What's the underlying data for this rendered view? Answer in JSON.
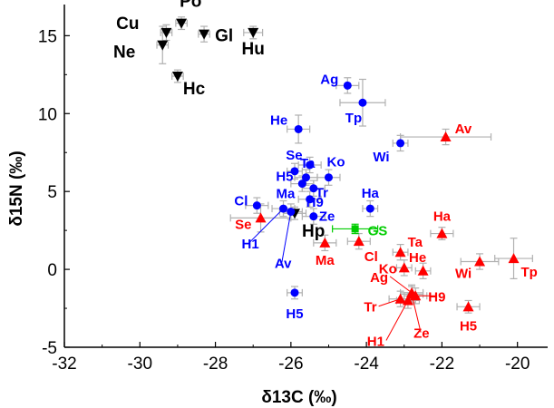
{
  "chart_data": {
    "type": "scatter",
    "xlabel": "δ13C (‰)",
    "ylabel": "δ15N (‰)",
    "xlim": [
      -32,
      -19.2
    ],
    "ylim": [
      -5,
      17
    ],
    "x_ticks": [
      "-32",
      "-30",
      "-28",
      "-26",
      "-24",
      "-22",
      "-20"
    ],
    "y_ticks": [
      "-5",
      "0",
      "5",
      "10",
      "15"
    ],
    "grid": false,
    "legend": "none",
    "colors": {
      "black": "#000000",
      "blue": "#0000ff",
      "red": "#ff0000",
      "green": "#00cc00",
      "error": "#b0b0b0"
    },
    "series": [
      {
        "marker": "triangle-down",
        "color": "#000000",
        "points": [
          {
            "label": "Cu",
            "x": -29.3,
            "y": 15.2,
            "xerr": 0.15,
            "yerr": 0.5
          },
          {
            "label": "Ne",
            "x": -29.4,
            "y": 14.4,
            "xerr": 0.15,
            "yerr": 1.2
          },
          {
            "label": "Po",
            "x": -28.9,
            "y": 15.8,
            "xerr": 0.15,
            "yerr": 0.4
          },
          {
            "label": "Gl",
            "x": -28.3,
            "y": 15.1,
            "xerr": 0.15,
            "yerr": 0.5
          },
          {
            "label": "Hu",
            "x": -27.0,
            "y": 15.2,
            "xerr": 0.25,
            "yerr": 0.4
          },
          {
            "label": "Hc",
            "x": -29.0,
            "y": 12.4,
            "xerr": 0.15,
            "yerr": 0.4
          },
          {
            "label": "Hp",
            "x": -25.9,
            "y": 3.6,
            "xerr": 0.3,
            "yerr": 0.4
          }
        ]
      },
      {
        "marker": "circle",
        "color": "#0000ff",
        "points": [
          {
            "label": "Ag",
            "x": -24.5,
            "y": 11.8,
            "xerr": 0.3,
            "yerr": 0.5
          },
          {
            "label": "Tp",
            "x": -24.1,
            "y": 10.7,
            "xerr": 0.6,
            "yerr": 1.5
          },
          {
            "label": "He",
            "x": -25.8,
            "y": 9.0,
            "xerr": 0.3,
            "yerr": 0.9
          },
          {
            "label": "Wi",
            "x": -23.1,
            "y": 8.1,
            "xerr": 0.2,
            "yerr": 0.5
          },
          {
            "label": "Se",
            "x": -25.5,
            "y": 6.7,
            "xerr": 0.3,
            "yerr": 0.5
          },
          {
            "label": "Ta",
            "x": -25.9,
            "y": 6.3,
            "xerr": 0.2,
            "yerr": 0.5
          },
          {
            "label": "H5",
            "x": -25.6,
            "y": 5.9,
            "xerr": 0.3,
            "yerr": 0.5
          },
          {
            "label": "Ko",
            "x": -25.0,
            "y": 5.9,
            "xerr": 0.3,
            "yerr": 0.5
          },
          {
            "label": "Ma",
            "x": -25.7,
            "y": 5.5,
            "xerr": 0.3,
            "yerr": 0.5
          },
          {
            "label": "Tr",
            "x": -25.4,
            "y": 5.2,
            "xerr": 0.3,
            "yerr": 0.5
          },
          {
            "label": "H9",
            "x": -25.5,
            "y": 4.5,
            "xerr": 0.3,
            "yerr": 0.5
          },
          {
            "label": "Cl",
            "x": -26.9,
            "y": 4.1,
            "xerr": 0.3,
            "yerr": 0.5
          },
          {
            "label": "H1",
            "x": -26.2,
            "y": 3.9,
            "xerr": 0.3,
            "yerr": 0.5
          },
          {
            "label": "Ha",
            "x": -23.9,
            "y": 3.9,
            "xerr": 0.2,
            "yerr": 0.5
          },
          {
            "label": "Ze",
            "x": -25.4,
            "y": 3.4,
            "xerr": 0.3,
            "yerr": 0.5
          },
          {
            "label": "Av",
            "x": -26.0,
            "y": 3.7,
            "xerr": 0.3,
            "yerr": 0.5
          },
          {
            "label": "H5",
            "x": -25.9,
            "y": -1.5,
            "xerr": 0.2,
            "yerr": 0.4
          }
        ]
      },
      {
        "marker": "triangle-up",
        "color": "#ff0000",
        "points": [
          {
            "label": "Av",
            "x": -21.9,
            "y": 8.5,
            "xerr": 1.2,
            "yerr": 0.5
          },
          {
            "label": "Se",
            "x": -26.8,
            "y": 3.3,
            "xerr": 0.8,
            "yerr": 0.9
          },
          {
            "label": "Ha",
            "x": -22.0,
            "y": 2.3,
            "xerr": 0.3,
            "yerr": 0.4
          },
          {
            "label": "Ma",
            "x": -25.1,
            "y": 1.7,
            "xerr": 0.3,
            "yerr": 0.5
          },
          {
            "label": "Cl",
            "x": -24.2,
            "y": 1.8,
            "xerr": 0.3,
            "yerr": 0.5
          },
          {
            "label": "Ta",
            "x": -23.1,
            "y": 1.1,
            "xerr": 0.2,
            "yerr": 0.5
          },
          {
            "label": "Ko",
            "x": -23.0,
            "y": 0.1,
            "xerr": 0.2,
            "yerr": 0.5
          },
          {
            "label": "He",
            "x": -22.5,
            "y": -0.1,
            "xerr": 0.2,
            "yerr": 0.5
          },
          {
            "label": "Wi",
            "x": -21.0,
            "y": 0.5,
            "xerr": 0.5,
            "yerr": 0.5
          },
          {
            "label": "Tp",
            "x": -20.1,
            "y": 0.7,
            "xerr": 0.5,
            "yerr": 1.3
          },
          {
            "label": "Ag",
            "x": -22.8,
            "y": -1.5,
            "xerr": 0.3,
            "yerr": 0.5
          },
          {
            "label": "H9",
            "x": -22.7,
            "y": -1.7,
            "xerr": 0.3,
            "yerr": 0.5
          },
          {
            "label": "Tr",
            "x": -23.1,
            "y": -1.9,
            "xerr": 0.3,
            "yerr": 0.5
          },
          {
            "label": "H1",
            "x": -22.9,
            "y": -2.0,
            "xerr": 0.3,
            "yerr": 0.5
          },
          {
            "label": "Ze",
            "x": -22.8,
            "y": -1.6,
            "xerr": 0.3,
            "yerr": 0.5
          },
          {
            "label": "H5",
            "x": -21.3,
            "y": -2.4,
            "xerr": 0.3,
            "yerr": 0.4
          }
        ]
      },
      {
        "marker": "square",
        "color": "#00cc00",
        "points": [
          {
            "label": "GS",
            "x": -24.3,
            "y": 2.6,
            "xerr": 0.6,
            "yerr": 0.3
          }
        ]
      }
    ]
  }
}
